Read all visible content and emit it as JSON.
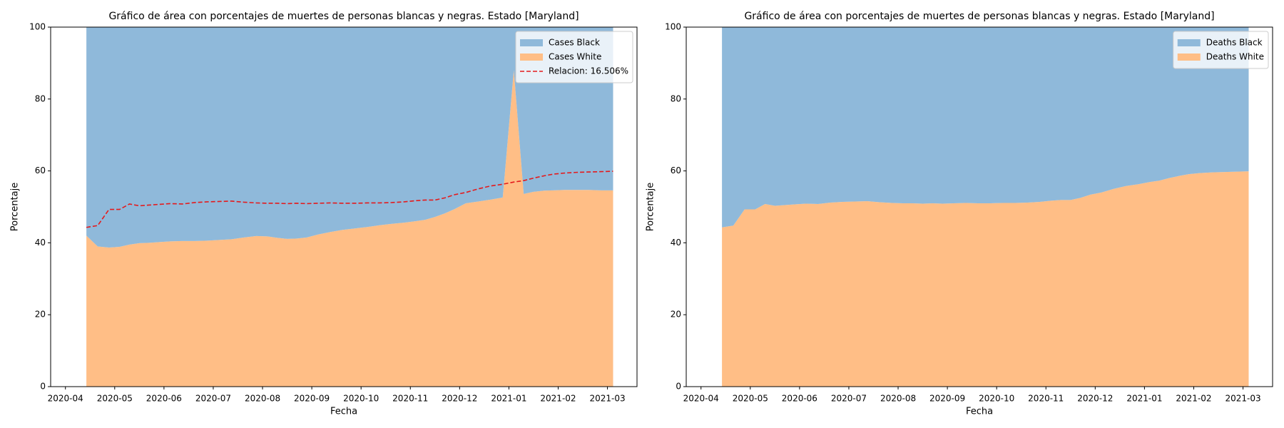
{
  "chart_data": [
    {
      "type": "area",
      "title": "Gráfico de área con porcentajes de muertes de personas blancas y negras. Estado [Maryland]",
      "x_label": "Fecha",
      "y_label": "Porcentaje",
      "legend": "upper right",
      "x": [
        "2020-04",
        "2020-04",
        "2020-04",
        "2020-05",
        "2020-05",
        "2020-05",
        "2020-05",
        "2020-05",
        "2020-06",
        "2020-06",
        "2020-06",
        "2020-06",
        "2020-07",
        "2020-07",
        "2020-07",
        "2020-07",
        "2020-08",
        "2020-08",
        "2020-08",
        "2020-08",
        "2020-08",
        "2020-09",
        "2020-09",
        "2020-09",
        "2020-09",
        "2020-10",
        "2020-10",
        "2020-10",
        "2020-10",
        "2020-11",
        "2020-11",
        "2020-11",
        "2020-11",
        "2020-11",
        "2020-12",
        "2020-12",
        "2020-12",
        "2020-12",
        "2021-01",
        "2021-01",
        "2021-01",
        "2021-01",
        "2021-01",
        "2021-02",
        "2021-02",
        "2021-02",
        "2021-02",
        "2021-03"
      ],
      "xticks": [
        "2020-04",
        "2020-05",
        "2020-06",
        "2020-07",
        "2020-08",
        "2020-09",
        "2020-10",
        "2020-11",
        "2020-12",
        "2021-01",
        "2021-02",
        "2021-03"
      ],
      "ylim": [
        0,
        100
      ],
      "yticks": [
        0,
        20,
        40,
        60,
        80,
        100
      ],
      "series": [
        {
          "name": "Cases Black",
          "color": "#8fb9da",
          "type": "area",
          "values": [
            58.0,
            61.0,
            61.3,
            61.1,
            60.5,
            60.1,
            60.0,
            59.8,
            59.6,
            59.5,
            59.5,
            59.4,
            59.2,
            59.0,
            58.5,
            58.1,
            58.2,
            58.6,
            58.9,
            58.8,
            58.5,
            57.7,
            57.0,
            56.4,
            56.0,
            55.6,
            55.1,
            54.7,
            54.4,
            54.0,
            53.6,
            52.8,
            51.8,
            50.6,
            49.0,
            48.5,
            48.0,
            47.4,
            12.0,
            46.4,
            45.8,
            45.5,
            45.4,
            45.3,
            45.3,
            45.3,
            45.4,
            45.4
          ]
        },
        {
          "name": "Cases White",
          "color": "#ffbe86",
          "type": "area",
          "values": [
            42.0,
            39.0,
            38.7,
            38.9,
            39.5,
            39.9,
            40.0,
            40.2,
            40.4,
            40.5,
            40.5,
            40.6,
            40.8,
            41.0,
            41.5,
            41.9,
            41.8,
            41.4,
            41.1,
            41.2,
            41.5,
            42.3,
            43.0,
            43.6,
            44.0,
            44.4,
            44.9,
            45.3,
            45.6,
            46.0,
            46.4,
            47.2,
            48.2,
            49.4,
            51.0,
            51.5,
            52.0,
            52.6,
            88.0,
            53.6,
            54.2,
            54.5,
            54.6,
            54.7,
            54.7,
            54.7,
            54.6,
            54.6
          ]
        },
        {
          "name": "Relacion: 16.506%",
          "color": "#e41a1c",
          "type": "line",
          "dashed": true,
          "values": [
            44.3,
            44.8,
            49.3,
            49.3,
            50.8,
            50.3,
            50.5,
            50.7,
            50.9,
            50.8,
            51.2,
            51.4,
            51.5,
            51.6,
            51.3,
            51.1,
            51.0,
            51.0,
            50.9,
            51.0,
            50.9,
            51.0,
            51.1,
            51.0,
            51.0,
            51.1,
            51.1,
            51.2,
            51.4,
            51.7,
            51.9,
            51.9,
            52.5,
            53.4,
            54.0,
            55.0,
            55.8,
            56.3,
            56.9,
            57.3,
            58.0,
            58.6,
            59.1,
            59.4,
            59.6,
            59.7,
            59.8,
            59.9
          ]
        }
      ]
    },
    {
      "type": "area",
      "title": "Gráfico de área con porcentajes de muertes de personas blancas y negras. Estado [Maryland]",
      "x_label": "Fecha",
      "y_label": "Porcentaje",
      "legend": "upper right",
      "x": [
        "2020-04",
        "2020-04",
        "2020-04",
        "2020-05",
        "2020-05",
        "2020-05",
        "2020-05",
        "2020-05",
        "2020-06",
        "2020-06",
        "2020-06",
        "2020-06",
        "2020-07",
        "2020-07",
        "2020-07",
        "2020-07",
        "2020-08",
        "2020-08",
        "2020-08",
        "2020-08",
        "2020-08",
        "2020-09",
        "2020-09",
        "2020-09",
        "2020-09",
        "2020-10",
        "2020-10",
        "2020-10",
        "2020-10",
        "2020-11",
        "2020-11",
        "2020-11",
        "2020-11",
        "2020-11",
        "2020-12",
        "2020-12",
        "2020-12",
        "2020-12",
        "2021-01",
        "2021-01",
        "2021-01",
        "2021-01",
        "2021-01",
        "2021-02",
        "2021-02",
        "2021-02",
        "2021-02",
        "2021-03"
      ],
      "xticks": [
        "2020-04",
        "2020-05",
        "2020-06",
        "2020-07",
        "2020-08",
        "2020-09",
        "2020-10",
        "2020-11",
        "2020-12",
        "2021-01",
        "2021-02",
        "2021-03"
      ],
      "ylim": [
        0,
        100
      ],
      "yticks": [
        0,
        20,
        40,
        60,
        80,
        100
      ],
      "series": [
        {
          "name": "Deaths Black",
          "color": "#8fb9da",
          "type": "area",
          "values": [
            55.7,
            55.2,
            50.7,
            50.7,
            49.2,
            49.7,
            49.5,
            49.3,
            49.1,
            49.2,
            48.8,
            48.6,
            48.5,
            48.4,
            48.7,
            48.9,
            49.0,
            49.0,
            49.1,
            49.0,
            49.1,
            49.0,
            48.9,
            49.0,
            49.0,
            48.9,
            48.9,
            48.8,
            48.6,
            48.3,
            48.1,
            48.1,
            47.5,
            46.6,
            46.0,
            45.0,
            44.2,
            43.7,
            43.1,
            42.7,
            42.0,
            41.4,
            40.9,
            40.6,
            40.4,
            40.3,
            40.2,
            40.1
          ]
        },
        {
          "name": "Deaths White",
          "color": "#ffbe86",
          "type": "area",
          "values": [
            44.3,
            44.8,
            49.3,
            49.3,
            50.8,
            50.3,
            50.5,
            50.7,
            50.9,
            50.8,
            51.2,
            51.4,
            51.5,
            51.6,
            51.3,
            51.1,
            51.0,
            51.0,
            50.9,
            51.0,
            50.9,
            51.0,
            51.1,
            51.0,
            51.0,
            51.1,
            51.1,
            51.2,
            51.4,
            51.7,
            51.9,
            51.9,
            52.5,
            53.4,
            54.0,
            55.0,
            55.8,
            56.3,
            56.9,
            57.3,
            58.0,
            58.6,
            59.1,
            59.4,
            59.6,
            59.7,
            59.8,
            59.9
          ]
        }
      ]
    }
  ]
}
